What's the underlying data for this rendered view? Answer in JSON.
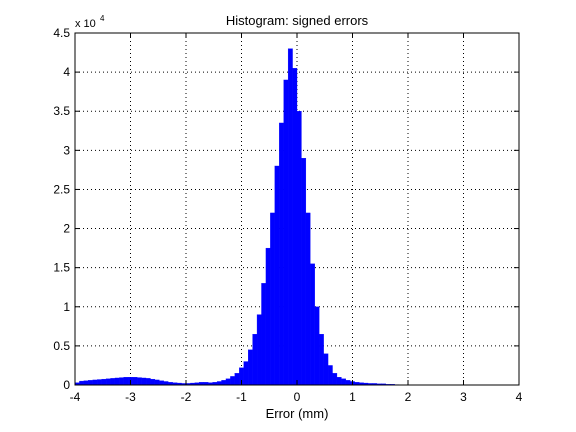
{
  "chart_data": {
    "type": "bar",
    "title": "Histogram: signed errors",
    "xlabel": "Error (mm)",
    "ylabel": "",
    "xlim": [
      -4,
      4
    ],
    "ylim": [
      0,
      45000
    ],
    "y_exponent_label": "x 10",
    "y_exponent_power": "4",
    "x_ticks": [
      "-4",
      "-3",
      "-2",
      "-1",
      "0",
      "1",
      "2",
      "3",
      "4"
    ],
    "y_ticks": [
      "0",
      "0.5",
      "1",
      "1.5",
      "2",
      "2.5",
      "3",
      "3.5",
      "4",
      "4.5"
    ],
    "grid": true,
    "bar_color": "#0000ff",
    "bin_width": 0.08,
    "bin_centers": [
      -3.96,
      -3.88,
      -3.8,
      -3.72,
      -3.64,
      -3.56,
      -3.48,
      -3.4,
      -3.32,
      -3.24,
      -3.16,
      -3.08,
      -3.0,
      -2.92,
      -2.84,
      -2.76,
      -2.68,
      -2.6,
      -2.52,
      -2.44,
      -2.36,
      -2.28,
      -2.2,
      -2.12,
      -2.04,
      -1.96,
      -1.88,
      -1.8,
      -1.72,
      -1.64,
      -1.56,
      -1.48,
      -1.4,
      -1.32,
      -1.24,
      -1.16,
      -1.08,
      -1.0,
      -0.92,
      -0.84,
      -0.76,
      -0.68,
      -0.6,
      -0.52,
      -0.44,
      -0.36,
      -0.28,
      -0.2,
      -0.12,
      -0.04,
      0.04,
      0.12,
      0.2,
      0.28,
      0.36,
      0.44,
      0.52,
      0.6,
      0.68,
      0.76,
      0.84,
      0.92,
      1.0,
      1.08,
      1.16,
      1.24,
      1.32,
      1.4,
      1.48,
      1.56,
      1.64,
      1.72,
      1.8
    ],
    "values": [
      300,
      500,
      550,
      600,
      650,
      700,
      750,
      800,
      850,
      900,
      950,
      1000,
      1000,
      1000,
      950,
      900,
      850,
      750,
      650,
      550,
      450,
      350,
      300,
      250,
      200,
      200,
      250,
      300,
      350,
      350,
      300,
      350,
      450,
      600,
      800,
      1100,
      1500,
      2200,
      3000,
      4500,
      6500,
      9000,
      13000,
      17500,
      22000,
      28000,
      33500,
      39000,
      43000,
      40500,
      35000,
      29000,
      22000,
      15500,
      10000,
      6500,
      4000,
      2500,
      1500,
      1000,
      800,
      600,
      450,
      350,
      300,
      250,
      200,
      200,
      150,
      150,
      100,
      100,
      50
    ]
  }
}
